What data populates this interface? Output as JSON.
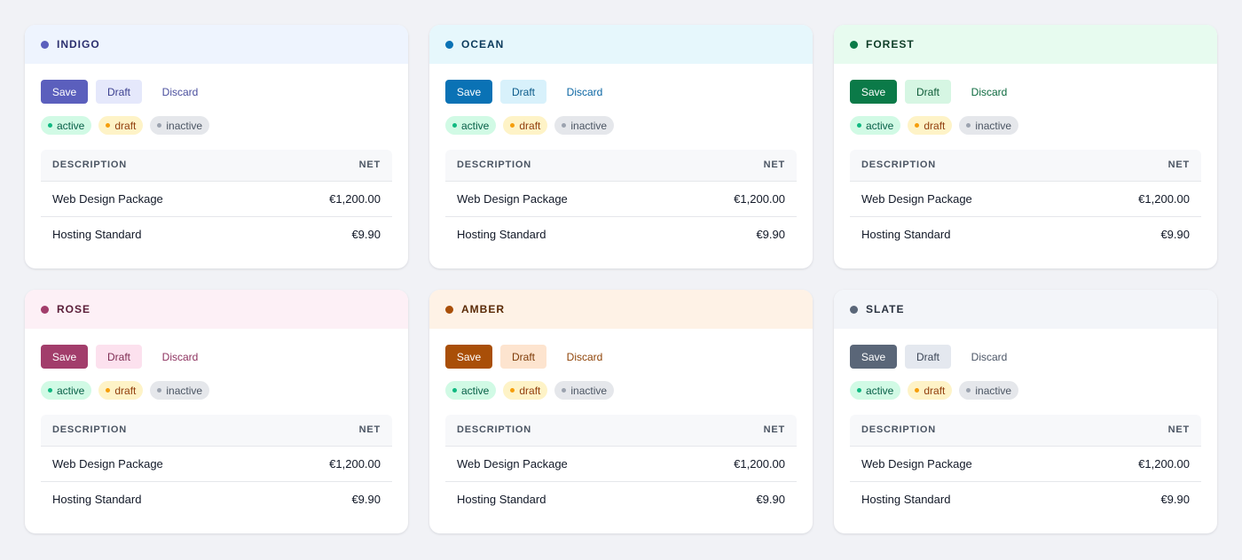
{
  "buttons": {
    "save": "Save",
    "draft": "Draft",
    "discard": "Discard"
  },
  "badges": {
    "active": "active",
    "draft": "draft",
    "inactive": "inactive"
  },
  "table": {
    "headers": {
      "description": "DESCRIPTION",
      "net": "NET"
    },
    "rows": [
      {
        "description": "Web Design Package",
        "net": "€1,200.00"
      },
      {
        "description": "Hosting Standard",
        "net": "€9.90"
      }
    ]
  },
  "cards": [
    {
      "title": "INDIGO",
      "colors": {
        "header_bg": "#eef4fe",
        "accent": "#5b5fbd",
        "title": "#2b2f6e",
        "draft_bg": "#e5e8fb",
        "draft_text": "#3b3f8f",
        "discard_text": "#4a4f9e"
      }
    },
    {
      "title": "OCEAN",
      "colors": {
        "header_bg": "#e6f7fc",
        "accent": "#0a72b5",
        "title": "#0c3b5c",
        "draft_bg": "#d8f1fb",
        "draft_text": "#0b5b8a",
        "discard_text": "#0b66a3"
      }
    },
    {
      "title": "FOREST",
      "colors": {
        "header_bg": "#e7fbef",
        "accent": "#0b7a48",
        "title": "#0e3d27",
        "draft_bg": "#d6f6e3",
        "draft_text": "#0e5b37",
        "discard_text": "#0d6a3f"
      }
    },
    {
      "title": "ROSE",
      "colors": {
        "header_bg": "#fdf0f6",
        "accent": "#a23d6b",
        "title": "#5a1d38",
        "draft_bg": "#fce1ee",
        "draft_text": "#7f2c52",
        "discard_text": "#8e3360"
      }
    },
    {
      "title": "AMBER",
      "colors": {
        "header_bg": "#fef2e6",
        "accent": "#a94f08",
        "title": "#5a2a06",
        "draft_bg": "#fde4cf",
        "draft_text": "#7d3a07",
        "discard_text": "#8f4408"
      }
    },
    {
      "title": "SLATE",
      "colors": {
        "header_bg": "#f3f5f9",
        "accent": "#5a6678",
        "title": "#2a3240",
        "draft_bg": "#e4e8ef",
        "draft_text": "#3b4556",
        "discard_text": "#4b5566"
      }
    }
  ]
}
